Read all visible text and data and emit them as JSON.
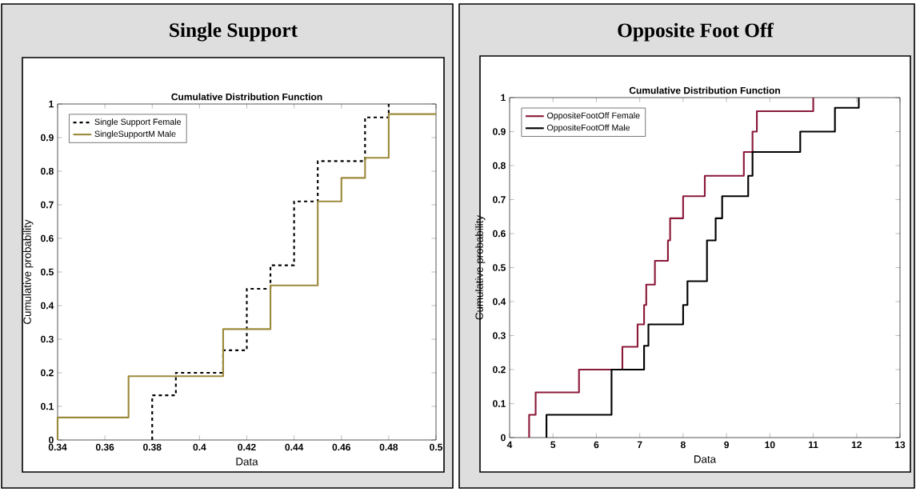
{
  "chart_data": [
    {
      "type": "step",
      "title": "Single Support",
      "subtitle": "Cumulative Distribution Function",
      "xlabel": "Data",
      "ylabel": "Cumulative probability",
      "xlim": [
        0.34,
        0.5
      ],
      "ylim": [
        0,
        1
      ],
      "xticks": [
        0.34,
        0.36,
        0.38,
        0.4,
        0.42,
        0.44,
        0.46,
        0.48,
        0.5
      ],
      "yticks": [
        0,
        0.1,
        0.2,
        0.3,
        0.4,
        0.5,
        0.6,
        0.7,
        0.8,
        0.9,
        1
      ],
      "legend": "top left",
      "grid": false,
      "marker": "none",
      "series": [
        {
          "name": "Single Support Female",
          "color": "#000000",
          "line_style": "dashed",
          "x": [
            0.38,
            0.38,
            0.39,
            0.41,
            0.42,
            0.43,
            0.44,
            0.45,
            0.47,
            0.48
          ],
          "values": [
            0,
            0.133,
            0.2,
            0.267,
            0.45,
            0.52,
            0.71,
            0.83,
            0.96,
            1
          ]
        },
        {
          "name": "SingleSupportM Male",
          "color": "#9c8a3c",
          "line_style": "solid",
          "x": [
            0.34,
            0.34,
            0.37,
            0.41,
            0.43,
            0.45,
            0.46,
            0.47,
            0.48,
            0.5
          ],
          "values": [
            0,
            0.067,
            0.19,
            0.33,
            0.46,
            0.71,
            0.78,
            0.84,
            0.97,
            0.97
          ]
        }
      ]
    },
    {
      "type": "step",
      "title": "Opposite Foot Off",
      "subtitle": "Cumulative Distribution Function",
      "xlabel": "Data",
      "ylabel": "Cumulative probability",
      "xlim": [
        4,
        13
      ],
      "ylim": [
        0,
        1
      ],
      "xticks": [
        4,
        5,
        6,
        7,
        8,
        9,
        10,
        11,
        12,
        13
      ],
      "yticks": [
        0,
        0.1,
        0.2,
        0.3,
        0.4,
        0.5,
        0.6,
        0.7,
        0.8,
        0.9,
        1
      ],
      "legend": "top left",
      "grid": false,
      "marker": "none",
      "series": [
        {
          "name": "OppositeFootOff Female",
          "color": "#8b1a3a",
          "line_style": "solid",
          "x": [
            4.45,
            4.45,
            4.6,
            5.6,
            6.6,
            6.95,
            7.1,
            7.15,
            7.35,
            7.65,
            7.7,
            8.0,
            8.5,
            9.4,
            9.6,
            9.7,
            11.0
          ],
          "values": [
            0,
            0.067,
            0.133,
            0.2,
            0.267,
            0.333,
            0.39,
            0.45,
            0.52,
            0.58,
            0.645,
            0.71,
            0.77,
            0.84,
            0.9,
            0.96,
            1
          ]
        },
        {
          "name": "OppositeFootOff Male",
          "color": "#000000",
          "line_style": "solid",
          "x": [
            4.85,
            4.85,
            6.35,
            7.1,
            7.2,
            8.0,
            8.1,
            8.55,
            8.75,
            8.9,
            9.5,
            9.6,
            10.7,
            11.5,
            12.05
          ],
          "values": [
            0,
            0.067,
            0.2,
            0.27,
            0.333,
            0.39,
            0.46,
            0.58,
            0.645,
            0.71,
            0.77,
            0.84,
            0.9,
            0.97,
            1
          ]
        }
      ]
    }
  ]
}
